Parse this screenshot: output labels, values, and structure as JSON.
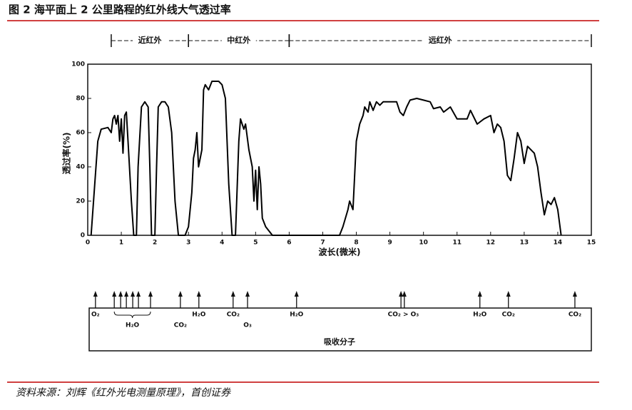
{
  "chart_data": {
    "type": "line",
    "title": "图 2 海平面上 2 公里路程的红外线大气透过率",
    "source": "资料来源：刘辉《红外光电测量原理》，首创证券",
    "xlabel": "波长(微米)",
    "ylabel": "透过率(%)",
    "xlim": [
      0,
      15
    ],
    "xticks": [
      0,
      1,
      2,
      3,
      4,
      5,
      6,
      7,
      8,
      9,
      10,
      11,
      12,
      13,
      14,
      15
    ],
    "ylim": [
      0,
      100
    ],
    "yticks": [
      0,
      20,
      40,
      60,
      80,
      100
    ],
    "regions": [
      {
        "name": "近红外",
        "range": [
          0.7,
          3
        ]
      },
      {
        "name": "中红外",
        "range": [
          3,
          6
        ]
      },
      {
        "name": "远红外",
        "range": [
          6,
          15
        ]
      }
    ],
    "x": [
      0.1,
      0.3,
      0.4,
      0.6,
      0.7,
      0.75,
      0.8,
      0.85,
      0.9,
      0.95,
      1.0,
      1.05,
      1.1,
      1.15,
      1.2,
      1.3,
      1.37,
      1.45,
      1.5,
      1.6,
      1.7,
      1.8,
      1.85,
      1.9,
      2.0,
      2.05,
      2.1,
      2.2,
      2.3,
      2.4,
      2.5,
      2.6,
      2.7,
      2.9,
      3.0,
      3.1,
      3.15,
      3.2,
      3.25,
      3.3,
      3.4,
      3.45,
      3.5,
      3.6,
      3.7,
      3.8,
      3.9,
      4.0,
      4.1,
      4.2,
      4.3,
      4.4,
      4.5,
      4.55,
      4.65,
      4.7,
      4.8,
      4.9,
      4.95,
      5.0,
      5.05,
      5.1,
      5.15,
      5.2,
      5.3,
      5.5,
      7.5,
      7.6,
      7.75,
      7.8,
      7.9,
      8.0,
      8.1,
      8.2,
      8.25,
      8.35,
      8.4,
      8.5,
      8.6,
      8.7,
      8.8,
      9.0,
      9.2,
      9.3,
      9.4,
      9.5,
      9.6,
      9.8,
      10.0,
      10.2,
      10.3,
      10.5,
      10.6,
      10.8,
      11.0,
      11.3,
      11.4,
      11.6,
      11.8,
      12.0,
      12.1,
      12.2,
      12.3,
      12.4,
      12.5,
      12.6,
      12.7,
      12.8,
      12.9,
      13.0,
      13.1,
      13.3,
      13.4,
      13.5,
      13.6,
      13.7,
      13.8,
      13.9,
      14.0,
      14.1
    ],
    "series": [
      {
        "color": "#000000",
        "values": [
          0,
          55,
          62,
          63,
          60,
          68,
          70,
          65,
          70,
          55,
          68,
          48,
          70,
          72,
          55,
          20,
          0,
          0,
          40,
          75,
          78,
          75,
          40,
          0,
          0,
          40,
          75,
          78,
          78,
          75,
          60,
          20,
          0,
          0,
          5,
          25,
          45,
          50,
          60,
          40,
          50,
          85,
          88,
          85,
          90,
          90,
          90,
          88,
          80,
          30,
          0,
          0,
          55,
          68,
          62,
          65,
          50,
          40,
          20,
          38,
          15,
          40,
          30,
          10,
          5,
          0,
          0,
          5,
          15,
          20,
          15,
          55,
          65,
          70,
          75,
          72,
          78,
          73,
          78,
          76,
          78,
          78,
          78,
          72,
          70,
          75,
          79,
          80,
          79,
          78,
          74,
          75,
          72,
          75,
          68,
          68,
          73,
          65,
          68,
          70,
          60,
          65,
          63,
          55,
          35,
          32,
          45,
          60,
          55,
          42,
          52,
          48,
          40,
          25,
          12,
          20,
          18,
          22,
          15,
          0
        ]
      }
    ],
    "absorption": {
      "title": "吸收分子",
      "arrows": [
        0.23,
        0.79,
        0.98,
        1.15,
        1.34,
        1.51,
        1.87,
        2.76,
        3.31,
        4.33,
        4.76,
        6.22,
        9.33,
        9.43,
        11.68,
        12.53,
        14.51
      ],
      "labels": [
        {
          "text": "O₂",
          "x": 0.23
        },
        {
          "text": "H₂O",
          "x": 3.31
        },
        {
          "text": "CO₂",
          "x": 4.33
        },
        {
          "text": "H₂O",
          "x": 6.22
        },
        {
          "text": "CO₂ > O₃",
          "x": 9.4
        },
        {
          "text": "H₂O",
          "x": 11.68
        },
        {
          "text": "CO₂",
          "x": 12.53
        },
        {
          "text": "CO₂",
          "x": 14.51
        }
      ],
      "lower_labels": [
        {
          "text": "H₂O",
          "x": 1.33,
          "span": [
            0.79,
            1.87
          ]
        },
        {
          "text": "CO₂",
          "x": 2.76
        },
        {
          "text": "O₃",
          "x": 4.76
        }
      ]
    }
  }
}
